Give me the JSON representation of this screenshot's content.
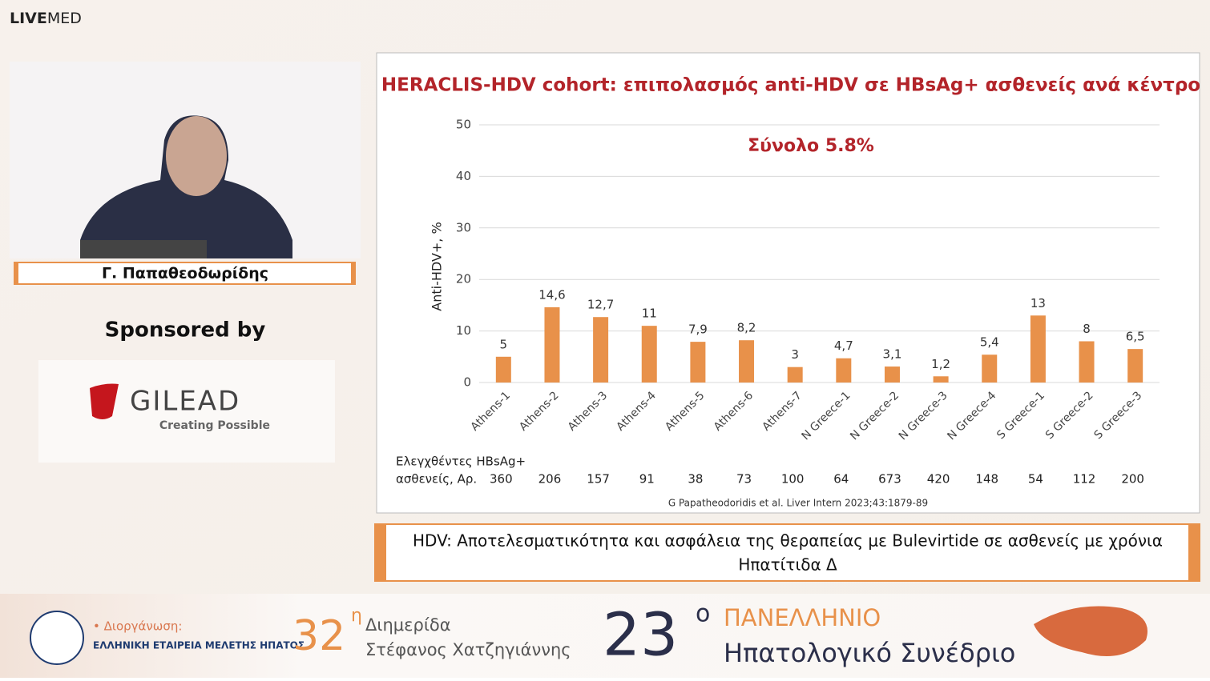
{
  "logo": {
    "bold": "LIVE",
    "light": "MED"
  },
  "speaker": {
    "name": "Γ. Παπαθεοδωρίδης"
  },
  "sponsor": {
    "label": "Sponsored by",
    "name": "GILEAD",
    "tagline": "Creating Possible"
  },
  "chart_data": {
    "type": "bar",
    "title": "HERACLIS-HDV cohort: επιπολασμός anti-HDV σε HBsAg+ ασθενείς ανά κέντρο",
    "annotation": "Σύνολο 5.8%",
    "y_label": "Anti-HDV+, %",
    "categories": [
      "Athens-1",
      "Athens-2",
      "Athens-3",
      "Athens-4",
      "Athens-5",
      "Athens-6",
      "Athens-7",
      "N Greece-1",
      "N Greece-2",
      "N Greece-3",
      "N Greece-4",
      "S Greece-1",
      "S Greece-2",
      "S Greece-3"
    ],
    "values": [
      5,
      14.6,
      12.7,
      11,
      7.9,
      8.2,
      3,
      4.7,
      3.1,
      1.2,
      5.4,
      13,
      8,
      6.5
    ],
    "value_labels": [
      "5",
      "14,6",
      "12,7",
      "11",
      "7,9",
      "8,2",
      "3",
      "4,7",
      "3,1",
      "1,2",
      "5,4",
      "13",
      "8",
      "6,5"
    ],
    "color": "#e8914a",
    "ylim": [
      0,
      50
    ],
    "yticks": [
      0,
      10,
      20,
      30,
      40,
      50
    ],
    "grid": true,
    "row_label": [
      "Ελεγχθέντες HBsAg+",
      "ασθενείς, Αρ."
    ],
    "row_values": [
      360,
      206,
      157,
      91,
      38,
      73,
      100,
      64,
      673,
      420,
      148,
      54,
      112,
      200
    ],
    "source": "G Papatheodoridis et al. Liver Intern 2023;43:1879-89"
  },
  "subtitle": {
    "lines": [
      "HDV: Αποτελεσματικότητα και ασφάλεια της θεραπείας με Bulevirtide σε ασθενείς με χρόνια",
      "Ηπατίτιδα Δ"
    ]
  },
  "footer": {
    "organizer_label": "• Διοργάνωση:",
    "organizer": "ΕΛΛΗΝΙΚΗ ΕΤΑΙΡΕΙΑ ΜΕΛΕΤΗΣ ΗΠΑΤΟΣ",
    "meeting_number": "32",
    "meeting_sup": "η",
    "meeting_line1": "Διημερίδα",
    "meeting_line2": "Στέφανος Χατζηγιάννης",
    "congress_number": "23",
    "congress_sup": "ο",
    "congress_line1": "ΠΑΝΕΛΛΗΝΙΟ",
    "congress_line2": "Ηπατολογικό Συνέδριο"
  }
}
